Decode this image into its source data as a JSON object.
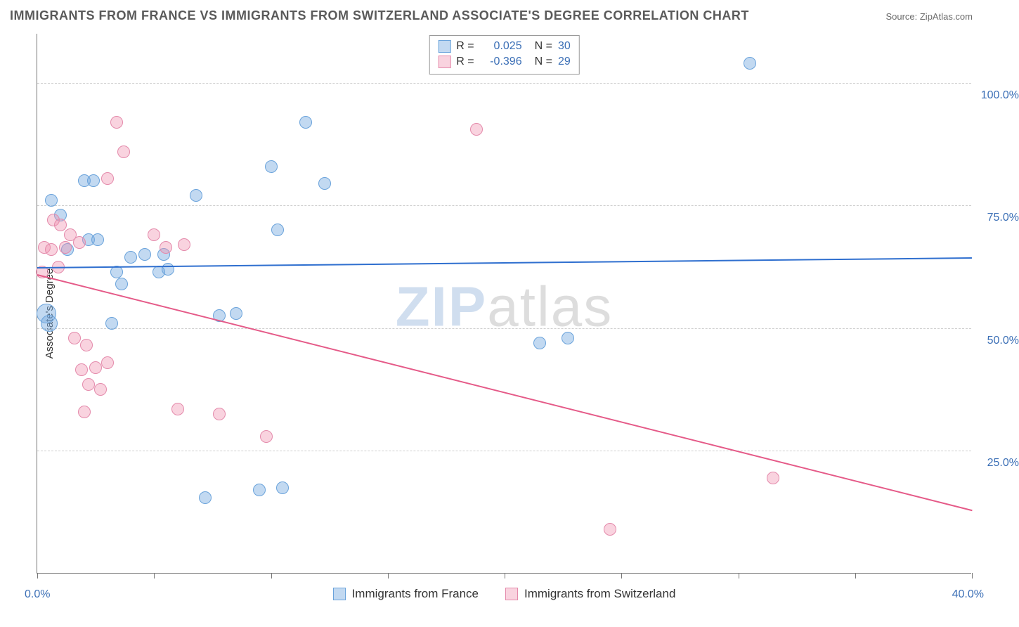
{
  "title": "IMMIGRANTS FROM FRANCE VS IMMIGRANTS FROM SWITZERLAND ASSOCIATE'S DEGREE CORRELATION CHART",
  "source_label": "Source: ",
  "source_value": "ZipAtlas.com",
  "y_axis_label": "Associate's Degree",
  "watermark_a": "ZIP",
  "watermark_b": "atlas",
  "chart": {
    "type": "scatter",
    "xlim": [
      0,
      40
    ],
    "ylim": [
      0,
      110
    ],
    "x_ticks": [
      0,
      5,
      10,
      15,
      20,
      25,
      30,
      35,
      40
    ],
    "x_tick_labels_shown": {
      "left": "0.0%",
      "right": "40.0%"
    },
    "y_ticks": [
      25,
      50,
      75,
      100
    ],
    "y_tick_labels": [
      "25.0%",
      "50.0%",
      "75.0%",
      "100.0%"
    ],
    "grid_color": "#cfcfcf",
    "axis_color": "#777777",
    "background_color": "#ffffff",
    "label_color": "#3b6fb6",
    "series": [
      {
        "name": "Immigrants from France",
        "color_fill": "rgba(120,170,225,0.45)",
        "color_stroke": "#6aa3db",
        "trend_color": "#2f6fcf",
        "R": "0.025",
        "N": "30",
        "trend": {
          "y_at_x0": 62.5,
          "y_at_x40": 64.5
        },
        "points": [
          {
            "x": 0.6,
            "y": 76.0,
            "r": 9
          },
          {
            "x": 1.0,
            "y": 73.0,
            "r": 9
          },
          {
            "x": 1.3,
            "y": 66.0,
            "r": 9
          },
          {
            "x": 0.4,
            "y": 53.0,
            "r": 14
          },
          {
            "x": 0.5,
            "y": 51.0,
            "r": 12
          },
          {
            "x": 2.0,
            "y": 80.0,
            "r": 9
          },
          {
            "x": 2.4,
            "y": 80.0,
            "r": 9
          },
          {
            "x": 2.2,
            "y": 68.0,
            "r": 9
          },
          {
            "x": 2.6,
            "y": 68.0,
            "r": 9
          },
          {
            "x": 3.4,
            "y": 61.5,
            "r": 9
          },
          {
            "x": 3.6,
            "y": 59.0,
            "r": 9
          },
          {
            "x": 3.2,
            "y": 51.0,
            "r": 9
          },
          {
            "x": 4.0,
            "y": 64.5,
            "r": 9
          },
          {
            "x": 4.6,
            "y": 65.0,
            "r": 9
          },
          {
            "x": 5.2,
            "y": 61.5,
            "r": 9
          },
          {
            "x": 5.4,
            "y": 65.0,
            "r": 9
          },
          {
            "x": 5.6,
            "y": 62.0,
            "r": 9
          },
          {
            "x": 6.8,
            "y": 77.0,
            "r": 9
          },
          {
            "x": 7.8,
            "y": 52.5,
            "r": 9
          },
          {
            "x": 8.5,
            "y": 53.0,
            "r": 9
          },
          {
            "x": 7.2,
            "y": 15.5,
            "r": 9
          },
          {
            "x": 9.5,
            "y": 17.0,
            "r": 9
          },
          {
            "x": 10.5,
            "y": 17.5,
            "r": 9
          },
          {
            "x": 10.0,
            "y": 83.0,
            "r": 9
          },
          {
            "x": 10.3,
            "y": 70.0,
            "r": 9
          },
          {
            "x": 11.5,
            "y": 92.0,
            "r": 9
          },
          {
            "x": 12.3,
            "y": 79.5,
            "r": 9
          },
          {
            "x": 21.5,
            "y": 47.0,
            "r": 9
          },
          {
            "x": 22.7,
            "y": 48.0,
            "r": 9
          },
          {
            "x": 30.5,
            "y": 104.0,
            "r": 9
          }
        ]
      },
      {
        "name": "Immigrants from Switzerland",
        "color_fill": "rgba(240,145,175,0.40)",
        "color_stroke": "#e48aab",
        "trend_color": "#e55a88",
        "R": "-0.396",
        "N": "29",
        "trend": {
          "y_at_x0": 61.0,
          "y_at_x40": 13.0
        },
        "points": [
          {
            "x": 0.3,
            "y": 66.5,
            "r": 9
          },
          {
            "x": 0.2,
            "y": 61.5,
            "r": 9
          },
          {
            "x": 0.6,
            "y": 66.0,
            "r": 9
          },
          {
            "x": 0.7,
            "y": 72.0,
            "r": 9
          },
          {
            "x": 1.0,
            "y": 71.0,
            "r": 9
          },
          {
            "x": 1.4,
            "y": 69.0,
            "r": 9
          },
          {
            "x": 1.6,
            "y": 48.0,
            "r": 9
          },
          {
            "x": 1.9,
            "y": 41.5,
            "r": 9
          },
          {
            "x": 2.2,
            "y": 38.5,
            "r": 9
          },
          {
            "x": 2.5,
            "y": 42.0,
            "r": 9
          },
          {
            "x": 2.0,
            "y": 33.0,
            "r": 9
          },
          {
            "x": 3.0,
            "y": 43.0,
            "r": 9
          },
          {
            "x": 3.0,
            "y": 80.5,
            "r": 9
          },
          {
            "x": 3.4,
            "y": 92.0,
            "r": 9
          },
          {
            "x": 3.7,
            "y": 86.0,
            "r": 9
          },
          {
            "x": 5.0,
            "y": 69.0,
            "r": 9
          },
          {
            "x": 5.5,
            "y": 66.5,
            "r": 9
          },
          {
            "x": 6.3,
            "y": 67.0,
            "r": 9
          },
          {
            "x": 6.0,
            "y": 33.5,
            "r": 9
          },
          {
            "x": 7.8,
            "y": 32.5,
            "r": 9
          },
          {
            "x": 9.8,
            "y": 28.0,
            "r": 9
          },
          {
            "x": 18.8,
            "y": 90.5,
            "r": 9
          },
          {
            "x": 24.5,
            "y": 9.0,
            "r": 9
          },
          {
            "x": 31.5,
            "y": 19.5,
            "r": 9
          },
          {
            "x": 1.2,
            "y": 66.5,
            "r": 9
          },
          {
            "x": 1.8,
            "y": 67.5,
            "r": 9
          },
          {
            "x": 2.7,
            "y": 37.5,
            "r": 9
          },
          {
            "x": 0.9,
            "y": 62.5,
            "r": 9
          },
          {
            "x": 2.1,
            "y": 46.5,
            "r": 9
          }
        ]
      }
    ],
    "legend_bottom": [
      {
        "label": "Immigrants from France",
        "swatch_fill": "rgba(120,170,225,0.45)",
        "swatch_stroke": "#6aa3db"
      },
      {
        "label": "Immigrants from Switzerland",
        "swatch_fill": "rgba(240,145,175,0.40)",
        "swatch_stroke": "#e48aab"
      }
    ]
  }
}
